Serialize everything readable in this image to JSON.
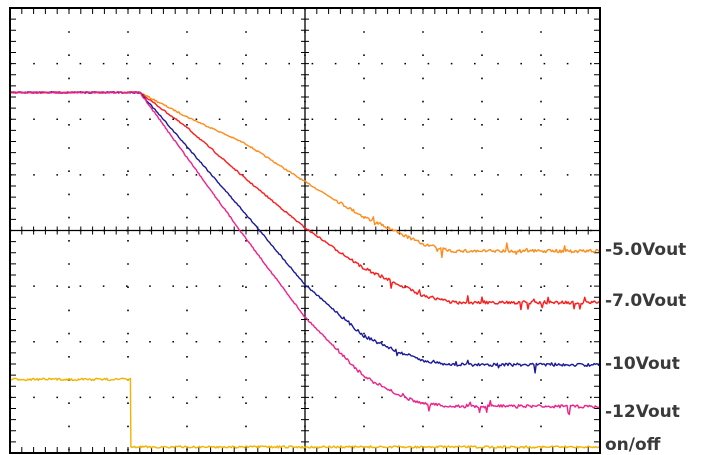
{
  "chart_data": {
    "type": "line",
    "title": "",
    "xlabel": "",
    "ylabel": "",
    "grid": true,
    "x_divisions": 10,
    "y_divisions": 8,
    "series": [
      {
        "name": "-5.0Vout",
        "color": "#ff8c1a",
        "points": [
          [
            0,
            6.55
          ],
          [
            2.2,
            6.55
          ],
          [
            3,
            6.1
          ],
          [
            4,
            5.6
          ],
          [
            5,
            4.9
          ],
          [
            6,
            4.25
          ],
          [
            7,
            3.75
          ],
          [
            7.5,
            3.62
          ],
          [
            8,
            3.62
          ],
          [
            10,
            3.62
          ]
        ]
      },
      {
        "name": "-7.0Vout",
        "color": "#ff1a1a",
        "points": [
          [
            0,
            6.55
          ],
          [
            2.2,
            6.55
          ],
          [
            3,
            5.9
          ],
          [
            4,
            4.95
          ],
          [
            5,
            4.05
          ],
          [
            6,
            3.3
          ],
          [
            7,
            2.8
          ],
          [
            7.5,
            2.67
          ],
          [
            10,
            2.67
          ]
        ]
      },
      {
        "name": "-10Vout",
        "color": "#1a1a9a",
        "points": [
          [
            0,
            6.55
          ],
          [
            2.2,
            6.55
          ],
          [
            3,
            5.55
          ],
          [
            4,
            4.3
          ],
          [
            5,
            3.0
          ],
          [
            6,
            2.05
          ],
          [
            6.6,
            1.75
          ],
          [
            7,
            1.6
          ],
          [
            7.5,
            1.52
          ],
          [
            10,
            1.52
          ]
        ]
      },
      {
        "name": "-12Vout",
        "color": "#f0208a",
        "points": [
          [
            0,
            6.55
          ],
          [
            2.2,
            6.55
          ],
          [
            3,
            5.35
          ],
          [
            4,
            3.85
          ],
          [
            5,
            2.4
          ],
          [
            6,
            1.3
          ],
          [
            6.6,
            0.95
          ],
          [
            7,
            0.8
          ],
          [
            7.5,
            0.75
          ],
          [
            10,
            0.75
          ]
        ]
      },
      {
        "name": "on/off",
        "color": "#f2b300",
        "points": [
          [
            0,
            1.25
          ],
          [
            2.05,
            1.25
          ],
          [
            2.05,
            0.0
          ],
          [
            10,
            0.0
          ]
        ]
      }
    ]
  }
}
